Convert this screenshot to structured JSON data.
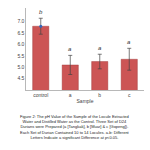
{
  "chart_data": {
    "type": "bar",
    "xlabel": "Sample",
    "caption": "Figure 2: The pH Value of the Sample of the Locule Extracted Water and Distilled Water as the Control. Three Set of D24 Durians were Prepared (a [Tangkak], b [Muar] & c [Gopeng]). Each Set of Durian Contained 10 to 14 Locules. a-b: Different Letters Indicate a significant Difference at p<0.05.",
    "categories": [
      "control",
      "a",
      "b",
      "c"
    ],
    "series": [
      {
        "type": "bar",
        "color": "#cc5555",
        "values": [
          6.8,
          5.1,
          5.25,
          5.35
        ],
        "errors": [
          0.35,
          0.42,
          0.32,
          0.48
        ],
        "error_color": "#444444",
        "significance_labels": [
          "b",
          "a",
          "a",
          "a"
        ]
      },
      {
        "type": "scatter",
        "marker": "circle",
        "color": "#3366bb",
        "values": [
          6.8,
          null,
          null,
          null
        ]
      }
    ],
    "ylim": [
      4.0,
      7.6
    ],
    "yticks": [
      4.5,
      {
        "value": 5.0,
        "label": "5.0"
      },
      5.5,
      {
        "value": 6.0,
        "label": "6.0"
      },
      6.5,
      {
        "value": 7.0,
        "label": "7.0"
      }
    ],
    "grid": false
  }
}
